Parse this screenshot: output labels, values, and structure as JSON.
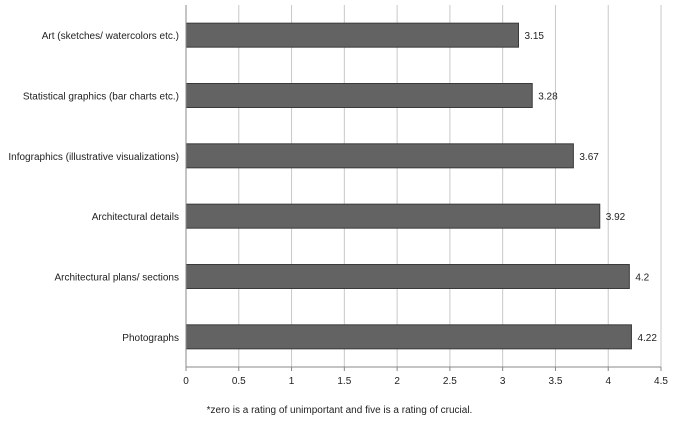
{
  "chart_data": {
    "type": "bar",
    "orientation": "horizontal",
    "categories": [
      "Art (sketches/ watercolors etc.)",
      "Statistical graphics (bar charts etc.)",
      "Infographics (illustrative visualizations)",
      "Architectural details",
      "Architectural plans/ sections",
      "Photographs"
    ],
    "values": [
      3.15,
      3.28,
      3.67,
      3.92,
      4.2,
      4.22
    ],
    "value_labels": [
      "3.15",
      "3.28",
      "3.67",
      "3.92",
      "4.2",
      "4.22"
    ],
    "xlim": [
      0,
      4.5
    ],
    "xticks": [
      "0",
      "0.5",
      "1",
      "1.5",
      "2",
      "2.5",
      "3",
      "3.5",
      "4",
      "4.5"
    ],
    "grid": "vertical",
    "bar_color": "#636363",
    "footnote": "*zero is a rating of unimportant and five is a rating of crucial."
  }
}
